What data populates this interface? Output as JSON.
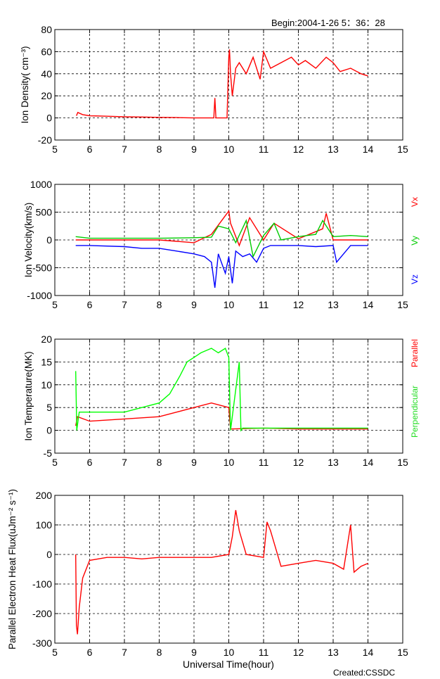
{
  "header": {
    "begin_label": "Begin:2004-1-26  5：36：28"
  },
  "footer": {
    "created_label": "Created:CSSDC",
    "xlabel": "Universal Time(hour)"
  },
  "chart_data": [
    {
      "type": "line",
      "ylabel": "Ion Density( cm⁻³)",
      "xlim": [
        5,
        15
      ],
      "ylim": [
        -20,
        80
      ],
      "xticks": [
        5,
        6,
        7,
        8,
        9,
        10,
        11,
        12,
        13,
        14,
        15
      ],
      "yticks": [
        -20,
        0,
        20,
        40,
        60,
        80
      ],
      "grid": true,
      "series": [
        {
          "color": "#ff0000",
          "x": [
            5.62,
            5.66,
            5.8,
            6,
            6.5,
            7,
            7.5,
            8,
            8.5,
            9,
            9.5,
            9.57,
            9.6,
            9.63,
            9.7,
            9.95,
            10,
            10.02,
            10.05,
            10.1,
            10.2,
            10.3,
            10.5,
            10.7,
            10.9,
            11,
            11.2,
            11.5,
            11.8,
            12,
            12.2,
            12.5,
            12.8,
            13,
            13.2,
            13.5,
            13.8,
            14
          ],
          "y": [
            2,
            5,
            3,
            2,
            1.5,
            1,
            0.8,
            0.5,
            0.3,
            0,
            0,
            0,
            18,
            0,
            0,
            0,
            55,
            62,
            40,
            20,
            45,
            50,
            40,
            55,
            35,
            60,
            45,
            50,
            55,
            48,
            52,
            45,
            55,
            50,
            42,
            45,
            40,
            38
          ]
        }
      ]
    },
    {
      "type": "line",
      "ylabel": "Ion Velocity(km/s)",
      "xlim": [
        5,
        15
      ],
      "ylim": [
        -1000,
        1000
      ],
      "xticks": [
        5,
        6,
        7,
        8,
        9,
        10,
        11,
        12,
        13,
        14,
        15
      ],
      "yticks": [
        -1000,
        -500,
        0,
        500,
        1000
      ],
      "grid": true,
      "legend": [
        "Vx",
        "Vy",
        "Vz"
      ],
      "series": [
        {
          "name": "Vx",
          "color": "#ff0000",
          "x": [
            5.6,
            6,
            7,
            8,
            9,
            9.5,
            10,
            10.05,
            10.3,
            10.6,
            11,
            11.3,
            12,
            12.7,
            12.8,
            13,
            14
          ],
          "y": [
            0,
            0,
            0,
            0,
            -50,
            100,
            520,
            300,
            -100,
            400,
            0,
            300,
            20,
            200,
            480,
            0,
            0
          ]
        },
        {
          "name": "Vy",
          "color": "#00cc00",
          "x": [
            5.6,
            6,
            7,
            8,
            9,
            9.5,
            9.7,
            10,
            10.2,
            10.5,
            10.7,
            11,
            11.3,
            11.5,
            12,
            12.5,
            12.7,
            13,
            13.5,
            14
          ],
          "y": [
            60,
            30,
            30,
            30,
            40,
            50,
            250,
            200,
            -50,
            350,
            -300,
            80,
            300,
            0,
            60,
            100,
            350,
            60,
            80,
            60
          ]
        },
        {
          "name": "Vz",
          "color": "#0000ff",
          "x": [
            5.6,
            6,
            7,
            7.5,
            8,
            8.5,
            9,
            9.3,
            9.5,
            9.6,
            9.7,
            9.9,
            10,
            10.1,
            10.2,
            10.4,
            10.6,
            10.8,
            11,
            11.2,
            11.5,
            12,
            12.5,
            13,
            13.1,
            13.5,
            14
          ],
          "y": [
            -100,
            -100,
            -120,
            -150,
            -150,
            -200,
            -250,
            -300,
            -400,
            -860,
            -250,
            -600,
            -300,
            -780,
            -200,
            -300,
            -250,
            -400,
            -150,
            -100,
            -100,
            -100,
            -120,
            -100,
            -400,
            -100,
            -100
          ]
        }
      ]
    },
    {
      "type": "line",
      "ylabel": "Ion Temperature(MK)",
      "xlim": [
        5,
        15
      ],
      "ylim": [
        -5,
        20
      ],
      "xticks": [
        5,
        6,
        7,
        8,
        9,
        10,
        11,
        12,
        13,
        14,
        15
      ],
      "yticks": [
        -5,
        0,
        5,
        10,
        15,
        20
      ],
      "grid": true,
      "legend": [
        "Parallel",
        "Perpendicular"
      ],
      "series": [
        {
          "name": "Parallel",
          "color": "#ff0000",
          "x": [
            5.6,
            5.65,
            6,
            7,
            8,
            8.5,
            9,
            9.5,
            10,
            10.05,
            11,
            12,
            14
          ],
          "y": [
            1,
            3,
            2,
            2.5,
            3,
            4,
            5,
            6,
            5,
            0.3,
            0.5,
            0.3,
            0.3
          ]
        },
        {
          "name": "Perpendicular",
          "color": "#00ff00",
          "x": [
            5.6,
            5.63,
            5.7,
            6,
            6.5,
            7,
            7.5,
            8,
            8.3,
            8.6,
            8.8,
            9,
            9.2,
            9.5,
            9.7,
            9.9,
            10,
            10.05,
            10.3,
            10.35,
            10.4,
            11,
            12,
            13,
            14
          ],
          "y": [
            13,
            0,
            4,
            4,
            4,
            4,
            5,
            6,
            8,
            12,
            15,
            16,
            17,
            18,
            17,
            18,
            16,
            0,
            15,
            0,
            0.5,
            0.5,
            0.5,
            0.5,
            0.5
          ]
        }
      ]
    },
    {
      "type": "line",
      "ylabel": "Parallel Electron Heat Flux(uJm⁻² s⁻¹)",
      "xlim": [
        5,
        15
      ],
      "ylim": [
        -300,
        200
      ],
      "xticks": [
        5,
        6,
        7,
        8,
        9,
        10,
        11,
        12,
        13,
        14,
        15
      ],
      "yticks": [
        -300,
        -200,
        -100,
        0,
        100,
        200
      ],
      "grid": true,
      "series": [
        {
          "color": "#ff0000",
          "x": [
            5.6,
            5.62,
            5.65,
            5.7,
            5.8,
            6,
            6.5,
            7,
            7.5,
            8,
            8.5,
            9,
            9.5,
            10,
            10.1,
            10.2,
            10.3,
            10.5,
            11,
            11.1,
            11.2,
            11.5,
            12,
            12.5,
            13,
            13.3,
            13.5,
            13.6,
            13.8,
            14
          ],
          "y": [
            0,
            -240,
            -270,
            -180,
            -80,
            -20,
            -10,
            -10,
            -15,
            -10,
            -10,
            -10,
            -10,
            0,
            60,
            150,
            80,
            0,
            -10,
            110,
            80,
            -40,
            -30,
            -20,
            -30,
            -50,
            100,
            -60,
            -40,
            -30
          ]
        }
      ]
    }
  ]
}
